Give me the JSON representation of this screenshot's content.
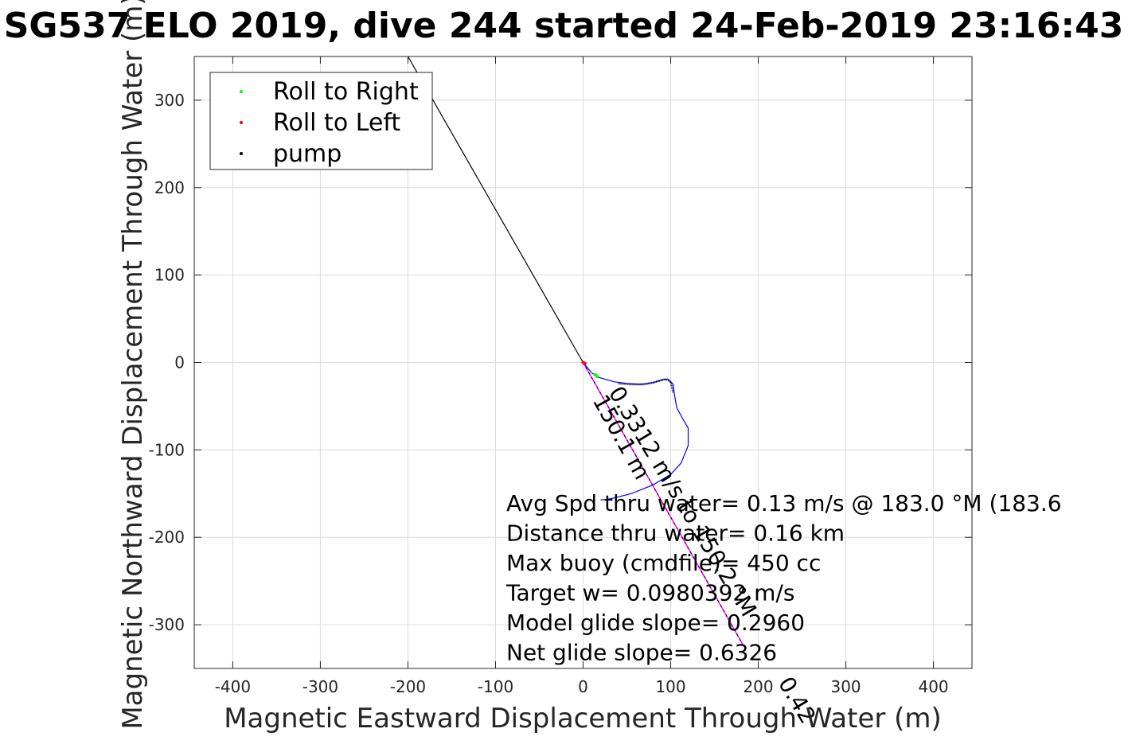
{
  "chart_data": {
    "type": "line",
    "title": "SG537 ELO 2019, dive 244 started 24-Feb-2019 23:16:43",
    "xlabel": "Magnetic Eastward Displacement Through Water (m)",
    "ylabel": "Magnetic Northward Displacement Through Water (m)",
    "xlim": [
      -444,
      444
    ],
    "ylim": [
      -350,
      350
    ],
    "xticks": [
      -400,
      -300,
      -200,
      -100,
      0,
      100,
      200,
      300,
      400
    ],
    "yticks": [
      -300,
      -200,
      -100,
      0,
      100,
      200,
      300
    ],
    "grid": true,
    "legend_position": "top-left",
    "legend": [
      {
        "label": "Roll to Right",
        "color": "#00ff00"
      },
      {
        "label": "Roll to Left",
        "color": "#ff0000"
      },
      {
        "label": "pump",
        "color": "#000000"
      }
    ],
    "track": {
      "color": "#0000ff",
      "x": [
        0,
        10,
        18,
        35,
        50,
        65,
        80,
        90,
        97,
        103,
        104,
        107,
        113,
        120,
        120,
        112,
        100,
        80,
        55,
        35,
        25,
        20
      ],
      "y": [
        0,
        -12,
        -17,
        -22,
        -24,
        -25,
        -23,
        -20,
        -19,
        -25,
        -35,
        -52,
        -63,
        -75,
        -95,
        -115,
        -128,
        -140,
        -150,
        -155,
        -157,
        -157
      ]
    },
    "pump_segment": {
      "x": [
        40,
        55,
        70,
        80,
        90,
        95,
        100,
        103
      ],
      "y": [
        -24,
        -25,
        -25,
        -23,
        -20,
        -19,
        -22,
        -35
      ]
    },
    "roll_right_points": {
      "x": [
        14,
        16
      ],
      "y": [
        -14,
        -16
      ]
    },
    "roll_left_points": {
      "x": [
        0,
        2
      ],
      "y": [
        0,
        -1
      ]
    },
    "pump_line": {
      "color": "#000000",
      "x": [
        -200,
        0
      ],
      "y": [
        350,
        0
      ]
    },
    "current_arrow": {
      "color": "#ff00ff",
      "x": [
        0,
        182
      ],
      "y": [
        0,
        -322
      ]
    },
    "track_label": "150.1 m",
    "current_label": "0.3312 m/s to 150.2 °M",
    "current_label_tail": "0.42",
    "annotations": [
      "Avg Spd thru water=  0.13 m/s @ 183.0 °M (183.6",
      "Distance thru water=  0.16 km",
      "Max buoy (cmdfile)= 450 cc",
      "Target w= 0.0980392 m/s",
      "Model glide slope= 0.2960",
      "Net glide slope= 0.6326"
    ]
  }
}
